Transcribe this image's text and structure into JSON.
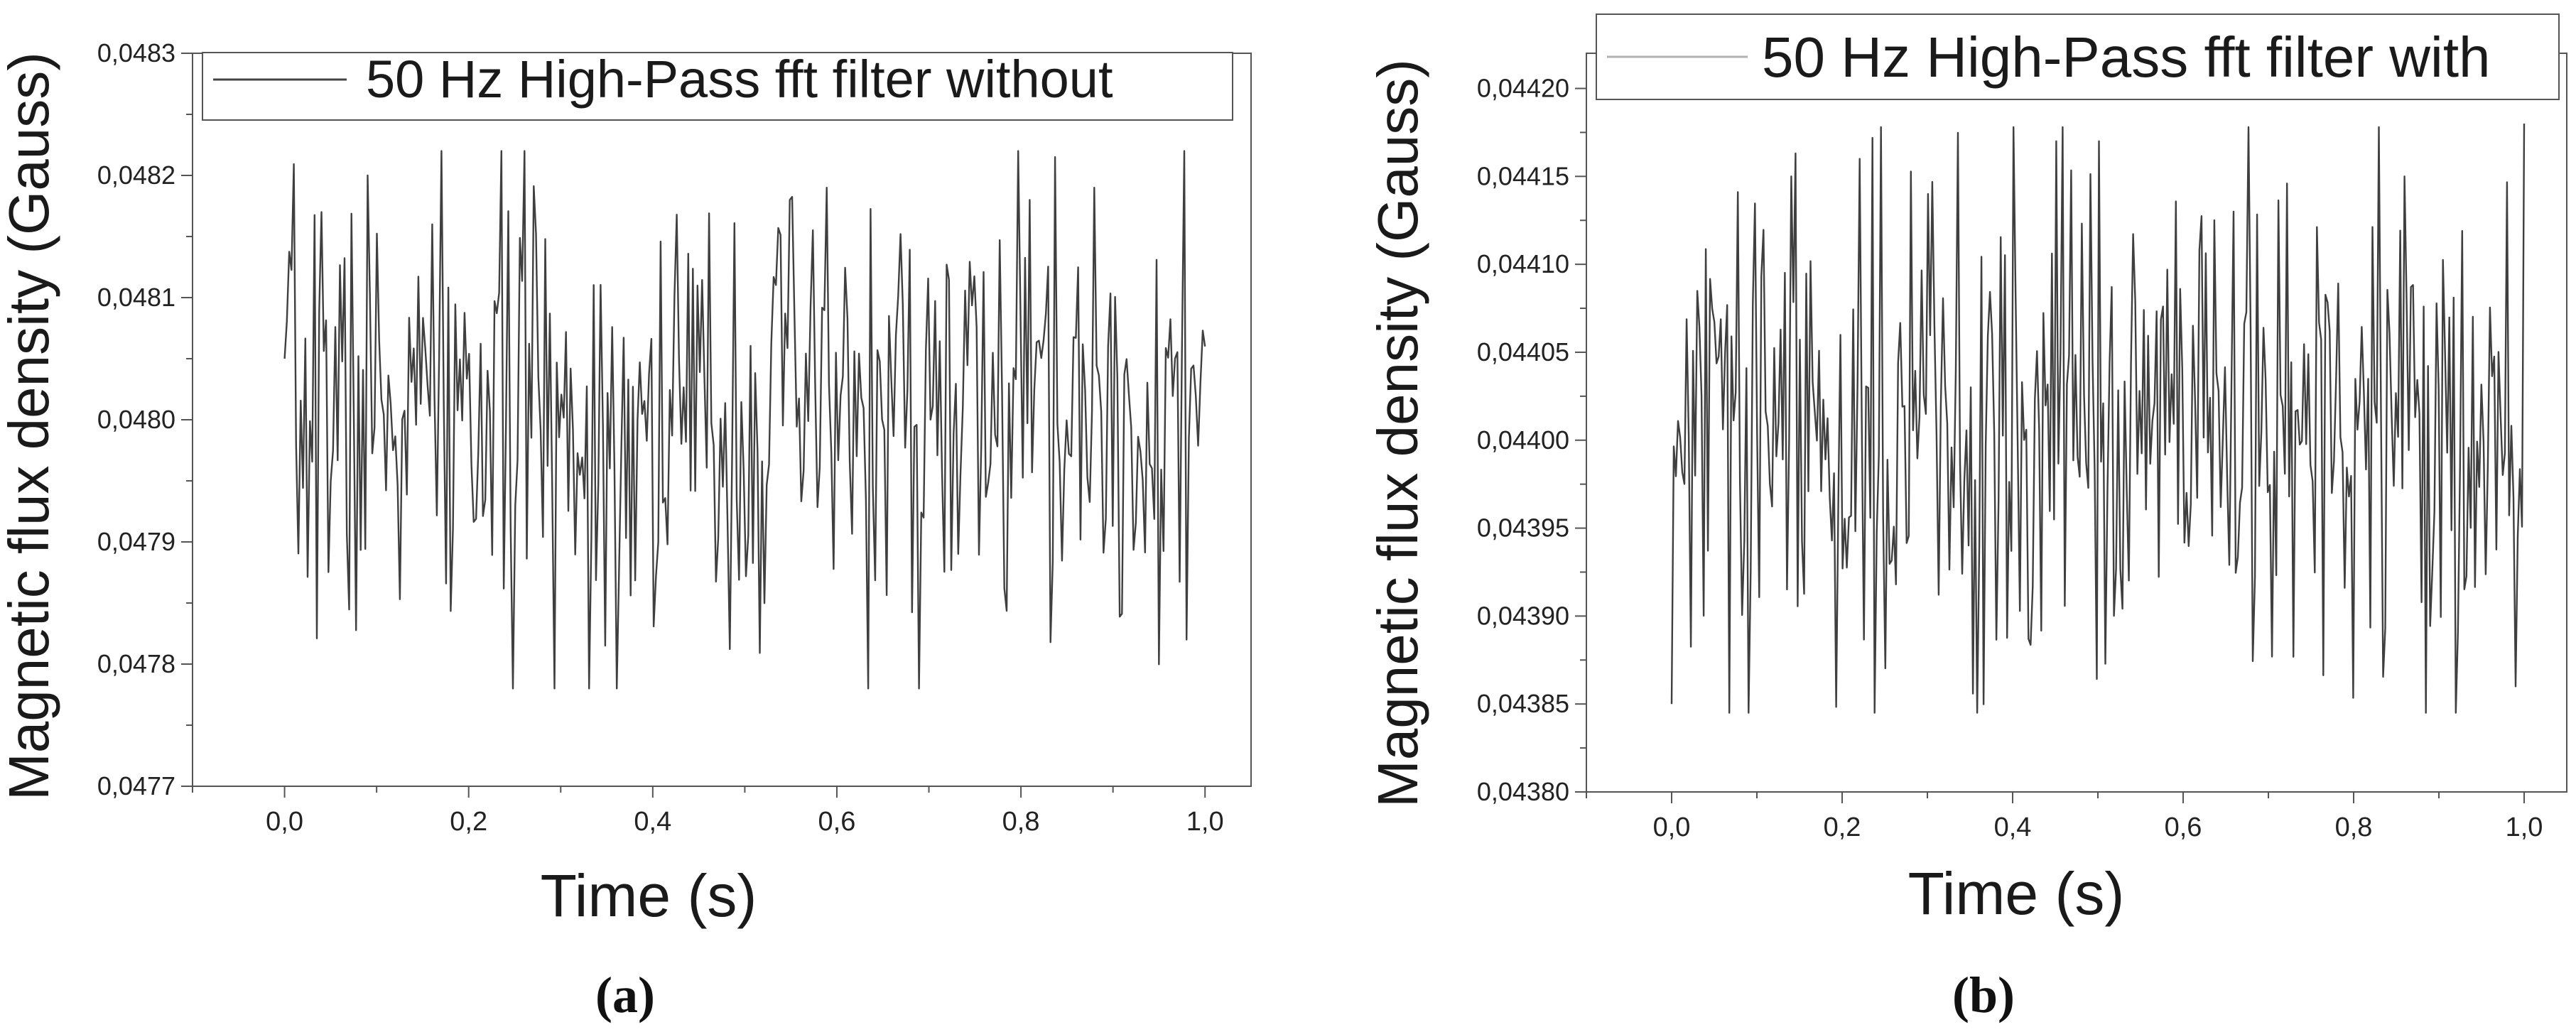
{
  "chart_data": [
    {
      "type": "line",
      "panel_label": "(a)",
      "legend_text": "50 Hz High-Pass fft filter without",
      "legend_position": "top",
      "xlabel": "Time (s)",
      "ylabel": "Magnetic flux density (Gauss)",
      "xlim": [
        -0.1,
        1.05
      ],
      "ylim": [
        0.0477,
        0.0483
      ],
      "x_ticks": [
        "0,0",
        "0,2",
        "0,4",
        "0,6",
        "0,8",
        "1,0"
      ],
      "y_ticks": [
        "0,0477",
        "0,0478",
        "0,0479",
        "0,0480",
        "0,0481",
        "0,0482",
        "0,0483"
      ],
      "grid": false,
      "series": [
        {
          "x_start": 0.0,
          "x_end": 1.0,
          "n_points": 400,
          "mean": 0.048,
          "typical_range": [
            0.0479,
            0.0481
          ],
          "observed_min": 0.04778,
          "observed_max": 0.04822,
          "peaks": [
            [
              0.0,
              0.04805
            ],
            [
              0.04,
              0.04817
            ],
            [
              0.09,
              0.0482
            ],
            [
              0.16,
              0.04816
            ],
            [
              0.26,
              0.04822
            ],
            [
              0.33,
              0.04778
            ],
            [
              0.55,
              0.04818
            ],
            [
              0.59,
              0.04819
            ],
            [
              0.81,
              0.04818
            ],
            [
              0.88,
              0.04819
            ],
            [
              0.98,
              0.04782
            ],
            [
              1.0,
              0.04806
            ]
          ]
        }
      ]
    },
    {
      "type": "line",
      "panel_label": "(b)",
      "legend_text": "50 Hz High-Pass fft filter with",
      "legend_position": "top",
      "xlabel": "Time (s)",
      "ylabel": "Magnetic flux density (Gauss)",
      "xlim": [
        -0.1,
        1.05
      ],
      "ylim": [
        0.0438,
        0.04422
      ],
      "x_ticks": [
        "0,0",
        "0,2",
        "0,4",
        "0,6",
        "0,8",
        "1,0"
      ],
      "y_ticks": [
        "0,04380",
        "0,04385",
        "0,04390",
        "0,04395",
        "0,04400",
        "0,04405",
        "0,04410",
        "0,04415",
        "0,04420"
      ],
      "grid": false,
      "series": [
        {
          "x_start": 0.0,
          "x_end": 1.0,
          "n_points": 400,
          "mean": 0.044,
          "typical_range": [
            0.04392,
            0.04408
          ],
          "observed_min": 0.043845,
          "observed_max": 0.044178,
          "peaks": [
            [
              0.0,
              0.04385
            ],
            [
              0.09,
              0.043845
            ],
            [
              0.14,
              0.04415
            ],
            [
              0.22,
              0.04416
            ],
            [
              0.3,
              0.04414
            ],
            [
              0.45,
              0.04417
            ],
            [
              0.5,
              0.04417
            ],
            [
              0.66,
              0.04413
            ],
            [
              0.86,
              0.04415
            ],
            [
              0.99,
              0.04386
            ],
            [
              1.0,
              0.04418
            ]
          ]
        }
      ]
    }
  ]
}
